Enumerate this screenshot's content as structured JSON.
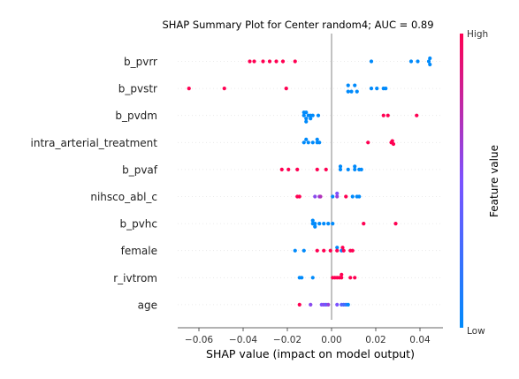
{
  "chart_data": {
    "type": "scatter",
    "title": "SHAP Summary Plot for Center random4; AUC = 0.89",
    "xlabel": "SHAP value (impact on model output)",
    "ylabel": "",
    "xlim": [
      -0.07,
      0.05
    ],
    "xticks": [
      -0.06,
      -0.04,
      -0.02,
      0.0,
      0.02,
      0.04
    ],
    "xtick_labels": [
      "−0.06",
      "−0.04",
      "−0.02",
      "0.00",
      "0.02",
      "0.04"
    ],
    "grid": false,
    "features": [
      "b_pvrr",
      "b_pvstr",
      "b_pvdm",
      "intra_arterial_treatment",
      "b_pvaf",
      "nihsco_abl_c",
      "b_pvhc",
      "female",
      "r_ivtrom",
      "age"
    ],
    "colorbar": {
      "label": "Feature value",
      "high_label": "High",
      "low_label": "Low",
      "low_color": "#008afb",
      "mid_color": "#7c52ff",
      "high_color": "#ff0052"
    },
    "points": [
      [
        {
          "x": -0.037,
          "v": 1,
          "j": 0
        },
        {
          "x": -0.035,
          "v": 1,
          "j": 0
        },
        {
          "x": -0.031,
          "v": 1,
          "j": 0
        },
        {
          "x": -0.028,
          "v": 1,
          "j": 0
        },
        {
          "x": -0.025,
          "v": 1,
          "j": 0
        },
        {
          "x": -0.022,
          "v": 1,
          "j": 0
        },
        {
          "x": -0.0165,
          "v": 1,
          "j": 0
        },
        {
          "x": 0.018,
          "v": 0,
          "j": 0
        },
        {
          "x": 0.036,
          "v": 0,
          "j": 0
        },
        {
          "x": 0.039,
          "v": 0,
          "j": 0
        },
        {
          "x": 0.044,
          "v": 0,
          "j": 0
        },
        {
          "x": 0.0445,
          "v": 0,
          "j": -1
        },
        {
          "x": 0.0445,
          "v": 0,
          "j": 1
        }
      ],
      [
        {
          "x": -0.0645,
          "v": 1,
          "j": 0
        },
        {
          "x": -0.0485,
          "v": 1,
          "j": 0
        },
        {
          "x": -0.0205,
          "v": 1,
          "j": 0
        },
        {
          "x": 0.0075,
          "v": 0,
          "j": -1
        },
        {
          "x": 0.0075,
          "v": 0,
          "j": 1
        },
        {
          "x": 0.009,
          "v": 0,
          "j": 1
        },
        {
          "x": 0.0105,
          "v": 0,
          "j": -1
        },
        {
          "x": 0.0115,
          "v": 0,
          "j": 1
        },
        {
          "x": 0.018,
          "v": 0,
          "j": 0
        },
        {
          "x": 0.0205,
          "v": 0,
          "j": 0
        },
        {
          "x": 0.0235,
          "v": 0,
          "j": 0
        },
        {
          "x": 0.0245,
          "v": 0,
          "j": 0
        }
      ],
      [
        {
          "x": -0.0125,
          "v": 0,
          "j": -1
        },
        {
          "x": -0.0115,
          "v": 0,
          "j": -1
        },
        {
          "x": -0.0125,
          "v": 0,
          "j": 0
        },
        {
          "x": -0.0105,
          "v": 0,
          "j": 0
        },
        {
          "x": -0.0095,
          "v": 0,
          "j": 0
        },
        {
          "x": -0.0085,
          "v": 0,
          "j": 0
        },
        {
          "x": -0.006,
          "v": 0,
          "j": 0
        },
        {
          "x": -0.0115,
          "v": 0,
          "j": 1
        },
        {
          "x": -0.0095,
          "v": 0,
          "j": 1
        },
        {
          "x": -0.0115,
          "v": 0,
          "j": 2
        },
        {
          "x": 0.0235,
          "v": 1,
          "j": 0
        },
        {
          "x": 0.0255,
          "v": 1,
          "j": 0
        },
        {
          "x": 0.0385,
          "v": 1,
          "j": 0
        }
      ],
      [
        {
          "x": -0.0115,
          "v": 0,
          "j": -1
        },
        {
          "x": -0.0065,
          "v": 0,
          "j": -1
        },
        {
          "x": -0.0125,
          "v": 0,
          "j": 0
        },
        {
          "x": -0.0105,
          "v": 0,
          "j": 0
        },
        {
          "x": -0.0085,
          "v": 0,
          "j": 0
        },
        {
          "x": -0.0065,
          "v": 0,
          "j": 0
        },
        {
          "x": -0.0055,
          "v": 0,
          "j": 0
        },
        {
          "x": 0.0165,
          "v": 1,
          "j": 0
        },
        {
          "x": 0.027,
          "v": 1,
          "j": 0
        },
        {
          "x": 0.0275,
          "v": 1,
          "j": -0.5
        },
        {
          "x": 0.028,
          "v": 1,
          "j": 0.5
        }
      ],
      [
        {
          "x": -0.0225,
          "v": 1,
          "j": 0
        },
        {
          "x": -0.0195,
          "v": 1,
          "j": 0
        },
        {
          "x": -0.0155,
          "v": 1,
          "j": 0
        },
        {
          "x": -0.0065,
          "v": 1,
          "j": 0
        },
        {
          "x": -0.0025,
          "v": 1,
          "j": 0
        },
        {
          "x": 0.004,
          "v": 0,
          "j": -1
        },
        {
          "x": 0.0105,
          "v": 0,
          "j": -1
        },
        {
          "x": 0.004,
          "v": 0,
          "j": 0
        },
        {
          "x": 0.0075,
          "v": 0,
          "j": 0
        },
        {
          "x": 0.0105,
          "v": 0,
          "j": 0
        },
        {
          "x": 0.0125,
          "v": 0,
          "j": 0
        },
        {
          "x": 0.0135,
          "v": 0,
          "j": 0
        }
      ],
      [
        {
          "x": -0.0155,
          "v": 1,
          "j": 0
        },
        {
          "x": -0.0145,
          "v": 1,
          "j": 0
        },
        {
          "x": -0.0075,
          "v": 0.55,
          "j": 0
        },
        {
          "x": -0.0055,
          "v": 0.6,
          "j": 0
        },
        {
          "x": -0.005,
          "v": 0.7,
          "j": 0
        },
        {
          "x": 0.0005,
          "v": 0,
          "j": 0
        },
        {
          "x": 0.0025,
          "v": 0.5,
          "j": -1
        },
        {
          "x": 0.0025,
          "v": 0.6,
          "j": 0
        },
        {
          "x": 0.0065,
          "v": 1,
          "j": 0
        },
        {
          "x": 0.0095,
          "v": 0,
          "j": 0
        },
        {
          "x": 0.0115,
          "v": 0,
          "j": 0
        },
        {
          "x": 0.0125,
          "v": 0,
          "j": 0
        }
      ],
      [
        {
          "x": -0.0085,
          "v": 0,
          "j": -1
        },
        {
          "x": -0.0085,
          "v": 0,
          "j": 0
        },
        {
          "x": -0.0075,
          "v": 0,
          "j": 0
        },
        {
          "x": -0.0055,
          "v": 0,
          "j": 0
        },
        {
          "x": -0.0035,
          "v": 0,
          "j": 0
        },
        {
          "x": -0.0015,
          "v": 0,
          "j": 0
        },
        {
          "x": 0.0005,
          "v": 0,
          "j": 0
        },
        {
          "x": -0.0075,
          "v": 0,
          "j": 1
        },
        {
          "x": 0.0145,
          "v": 1,
          "j": 0
        },
        {
          "x": 0.029,
          "v": 1,
          "j": 0
        }
      ],
      [
        {
          "x": -0.0165,
          "v": 0,
          "j": 0
        },
        {
          "x": -0.0125,
          "v": 0,
          "j": 0
        },
        {
          "x": -0.0065,
          "v": 1,
          "j": 0
        },
        {
          "x": -0.0035,
          "v": 1,
          "j": 0
        },
        {
          "x": -0.0005,
          "v": 1,
          "j": 0
        },
        {
          "x": 0.0025,
          "v": 0,
          "j": -1
        },
        {
          "x": 0.005,
          "v": 1,
          "j": -1
        },
        {
          "x": 0.0025,
          "v": 1,
          "j": 0
        },
        {
          "x": 0.0045,
          "v": 0,
          "j": 0
        },
        {
          "x": 0.0055,
          "v": 1,
          "j": 0
        },
        {
          "x": 0.0085,
          "v": 1,
          "j": 0
        },
        {
          "x": 0.0095,
          "v": 1,
          "j": 0
        }
      ],
      [
        {
          "x": -0.0145,
          "v": 0,
          "j": 0
        },
        {
          "x": -0.0135,
          "v": 0,
          "j": 0
        },
        {
          "x": -0.0085,
          "v": 0,
          "j": 0
        },
        {
          "x": 0.0005,
          "v": 1,
          "j": 0
        },
        {
          "x": 0.0015,
          "v": 1,
          "j": 0
        },
        {
          "x": 0.0025,
          "v": 1,
          "j": 0
        },
        {
          "x": 0.0035,
          "v": 1,
          "j": 0
        },
        {
          "x": 0.0045,
          "v": 1,
          "j": -1
        },
        {
          "x": 0.0045,
          "v": 1,
          "j": 0
        },
        {
          "x": 0.0085,
          "v": 1,
          "j": 0
        },
        {
          "x": 0.0105,
          "v": 1,
          "j": 0
        }
      ],
      [
        {
          "x": -0.0145,
          "v": 1,
          "j": 0
        },
        {
          "x": -0.0095,
          "v": 0.55,
          "j": 0
        },
        {
          "x": -0.0045,
          "v": 0.5,
          "j": 0
        },
        {
          "x": -0.0035,
          "v": 0.55,
          "j": 0
        },
        {
          "x": -0.0025,
          "v": 0.4,
          "j": 0
        },
        {
          "x": -0.0015,
          "v": 0.6,
          "j": 0
        },
        {
          "x": 0.0025,
          "v": 0.5,
          "j": 0
        },
        {
          "x": 0.0045,
          "v": 0.35,
          "j": 0
        },
        {
          "x": 0.0055,
          "v": 0.3,
          "j": 0
        },
        {
          "x": 0.0065,
          "v": 0.2,
          "j": 0
        },
        {
          "x": 0.0075,
          "v": 0,
          "j": 0
        }
      ]
    ]
  }
}
